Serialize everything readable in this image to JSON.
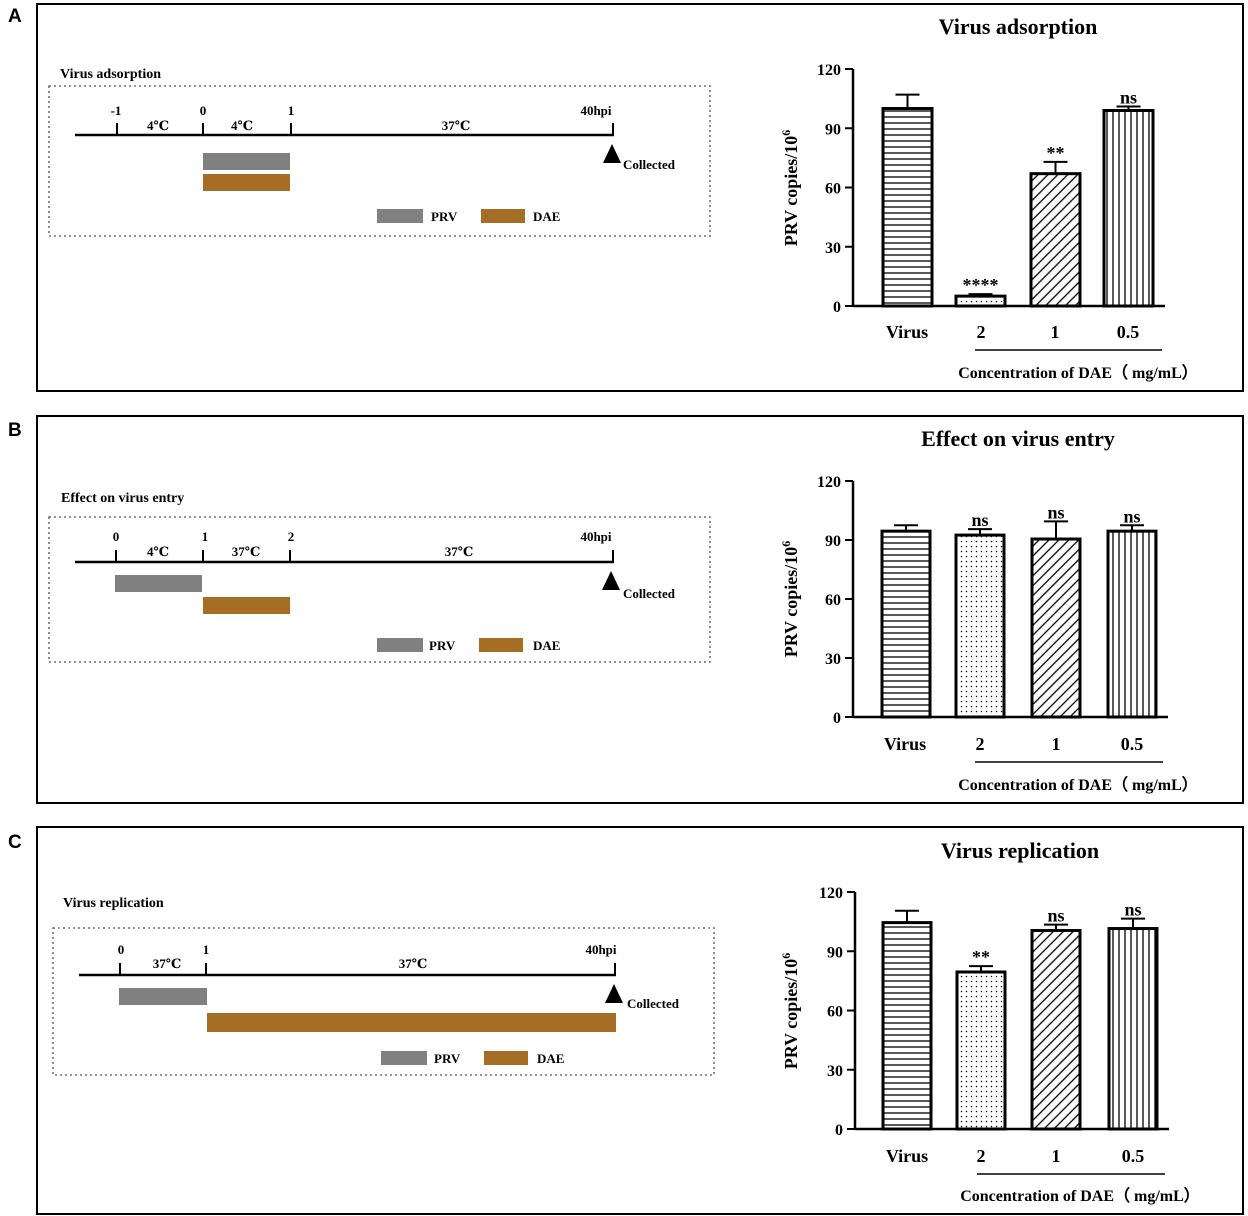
{
  "figure": {
    "panels": [
      {
        "letter": "A",
        "schematic": {
          "title": "Virus adsorption",
          "time_labels": [
            "-1",
            "0",
            "1",
            "40hpi"
          ],
          "temp_labels": [
            "4℃",
            "4℃",
            "37℃"
          ],
          "collected_label": "Collected",
          "legend": {
            "prv": "PRV",
            "dae": "DAE"
          }
        }
      },
      {
        "letter": "B",
        "schematic": {
          "title": "Effect on virus entry",
          "time_labels": [
            "0",
            "1",
            "2",
            "40hpi"
          ],
          "temp_labels": [
            "4℃",
            "37℃",
            "37℃"
          ],
          "collected_label": "Collected",
          "legend": {
            "prv": "PRV",
            "dae": "DAE"
          }
        }
      },
      {
        "letter": "C",
        "schematic": {
          "title": "Virus replication",
          "time_labels": [
            "0",
            "1",
            "40hpi"
          ],
          "temp_labels": [
            "37℃",
            "37℃"
          ],
          "collected_label": "Collected",
          "legend": {
            "prv": "PRV",
            "dae": "DAE"
          }
        }
      }
    ],
    "colors": {
      "prv": "#808080",
      "dae": "#a66e24",
      "axis": "#000000",
      "box_dots": "#707070"
    }
  },
  "chart_data": [
    {
      "type": "bar",
      "title": "Virus adsorption",
      "categories": [
        "Virus",
        "2",
        "1",
        "0.5"
      ],
      "values": [
        100,
        5,
        67,
        99
      ],
      "errors": [
        7,
        1,
        6,
        2
      ],
      "significance": [
        "",
        "****",
        "**",
        "ns"
      ],
      "patterns": [
        "hlines",
        "dots",
        "diag",
        "vlines"
      ],
      "ylabel": "PRV copies/10",
      "ylabel_sup": "6",
      "xlabel": "Concentration of DAE（ mg/mL）",
      "ylim": [
        0,
        120
      ],
      "yticks": [
        "0",
        "30",
        "60",
        "90",
        "120"
      ]
    },
    {
      "type": "bar",
      "title": "Effect on virus entry",
      "categories": [
        "Virus",
        "2",
        "1",
        "0.5"
      ],
      "values": [
        94.5,
        92.5,
        90.5,
        94.5
      ],
      "errors": [
        3,
        3,
        9,
        3
      ],
      "significance": [
        "",
        "ns",
        "ns",
        "ns"
      ],
      "patterns": [
        "hlines",
        "dots",
        "diag",
        "vlines"
      ],
      "ylabel": "PRV copies/10",
      "ylabel_sup": "6",
      "xlabel": "Concentration of DAE（ mg/mL）",
      "ylim": [
        0,
        120
      ],
      "yticks": [
        "0",
        "30",
        "60",
        "90",
        "120"
      ]
    },
    {
      "type": "bar",
      "title": "Virus replication",
      "categories": [
        "Virus",
        "2",
        "1",
        "0.5"
      ],
      "values": [
        104.5,
        79.5,
        100.5,
        101.5
      ],
      "errors": [
        6,
        3,
        3,
        5
      ],
      "significance": [
        "",
        "**",
        "ns",
        "ns"
      ],
      "patterns": [
        "hlines",
        "dots",
        "diag",
        "vlines"
      ],
      "ylabel": "PRV copies/10",
      "ylabel_sup": "6",
      "xlabel": "Concentration of DAE（ mg/mL）",
      "ylim": [
        0,
        120
      ],
      "yticks": [
        "0",
        "30",
        "60",
        "90",
        "120"
      ]
    }
  ]
}
